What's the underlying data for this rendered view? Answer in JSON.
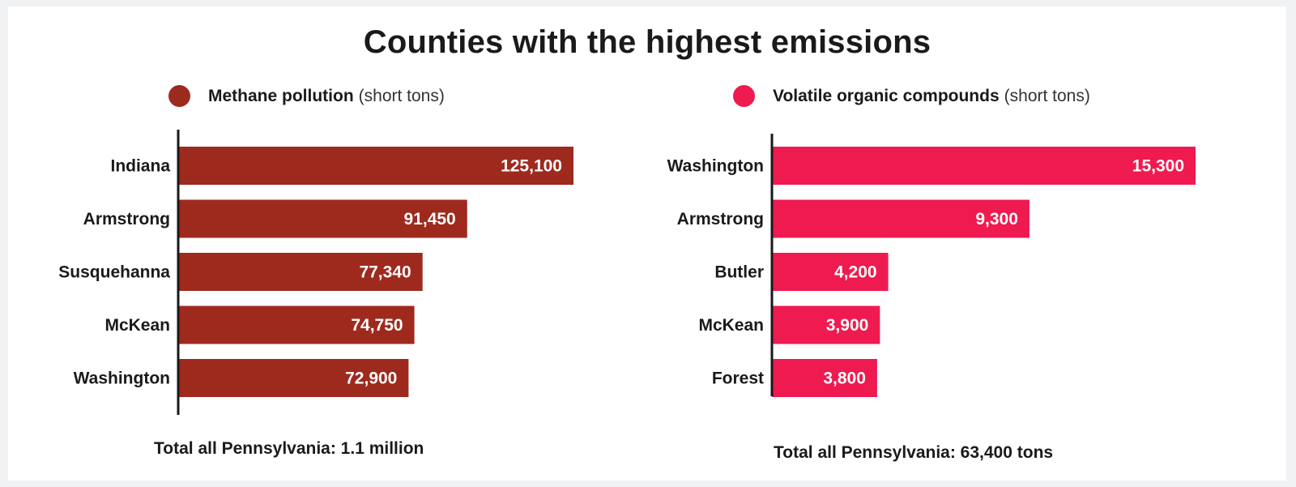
{
  "title": "Counties with the highest emissions",
  "chart_data": [
    {
      "type": "bar",
      "orientation": "horizontal",
      "legend_name": "Methane pollution",
      "legend_unit": "(short tons)",
      "color": "#9e2a1e",
      "categories": [
        "Indiana",
        "Armstrong",
        "Susquehanna",
        "McKean",
        "Washington"
      ],
      "values": [
        125100,
        91450,
        77340,
        74750,
        72900
      ],
      "value_labels": [
        "125,100",
        "91,450",
        "77,340",
        "74,750",
        "72,900"
      ],
      "footer": "Total all Pennsylvania: 1.1 million"
    },
    {
      "type": "bar",
      "orientation": "horizontal",
      "legend_name": "Volatile organic compounds",
      "legend_unit": "(short tons)",
      "color": "#ef1a4f",
      "categories": [
        "Washington",
        "Armstrong",
        "Butler",
        "McKean",
        "Forest"
      ],
      "values": [
        15300,
        9300,
        4200,
        3900,
        3800
      ],
      "value_labels": [
        "15,300",
        "9,300",
        "4,200",
        "3,900",
        "3,800"
      ],
      "footer": "Total all Pennsylvania: 63,400 tons"
    }
  ]
}
